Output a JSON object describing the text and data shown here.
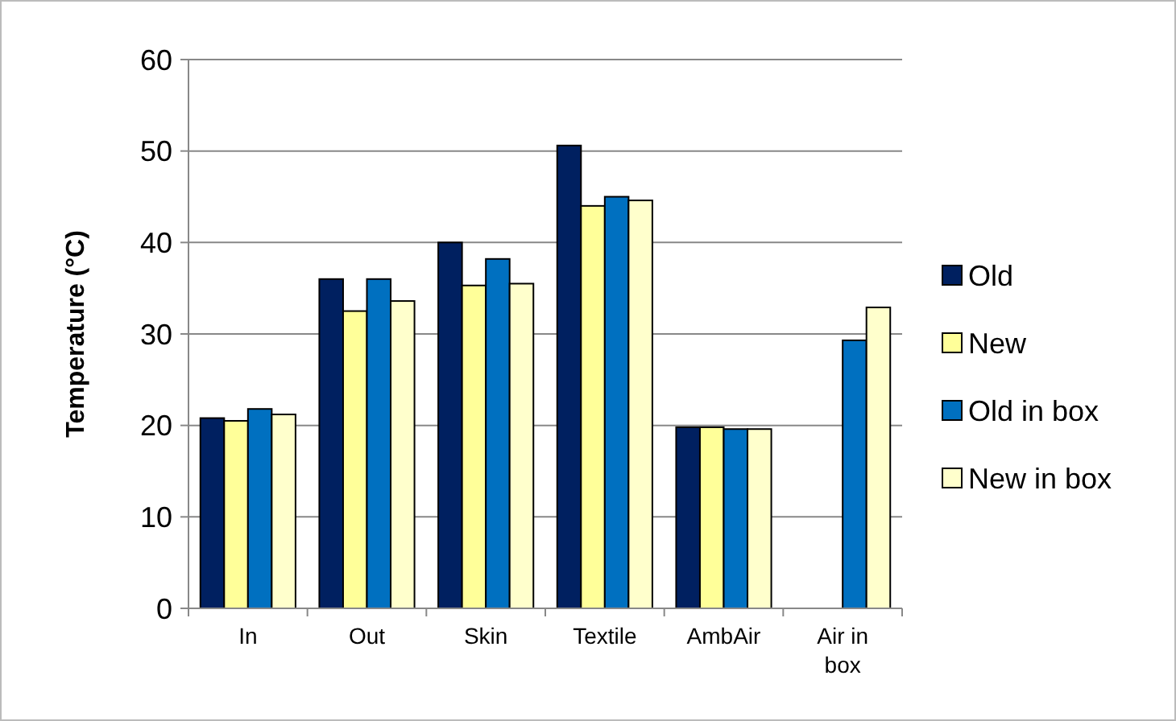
{
  "chart_data": {
    "type": "bar",
    "ylabel": "Temperature (°C)",
    "categories": [
      "In",
      "Out",
      "Skin",
      "Textile",
      "AmbAir",
      "Air in box"
    ],
    "series": [
      {
        "name": "Old",
        "color": "#002060",
        "values": [
          20.8,
          36,
          40,
          50.6,
          19.8,
          null
        ]
      },
      {
        "name": "New",
        "color": "#ffff99",
        "values": [
          20.5,
          32.5,
          35.3,
          44,
          19.8,
          null
        ]
      },
      {
        "name": "Old in box",
        "color": "#0070c0",
        "values": [
          21.8,
          36,
          38.2,
          45,
          19.6,
          29.3
        ]
      },
      {
        "name": "New in box",
        "color": "#ffffcc",
        "values": [
          21.2,
          33.6,
          35.5,
          44.6,
          19.6,
          32.9
        ]
      }
    ],
    "ylim": [
      0,
      60
    ],
    "yticks": [
      0,
      10,
      20,
      30,
      40,
      50,
      60
    ],
    "grid": "y",
    "legend": "right"
  }
}
